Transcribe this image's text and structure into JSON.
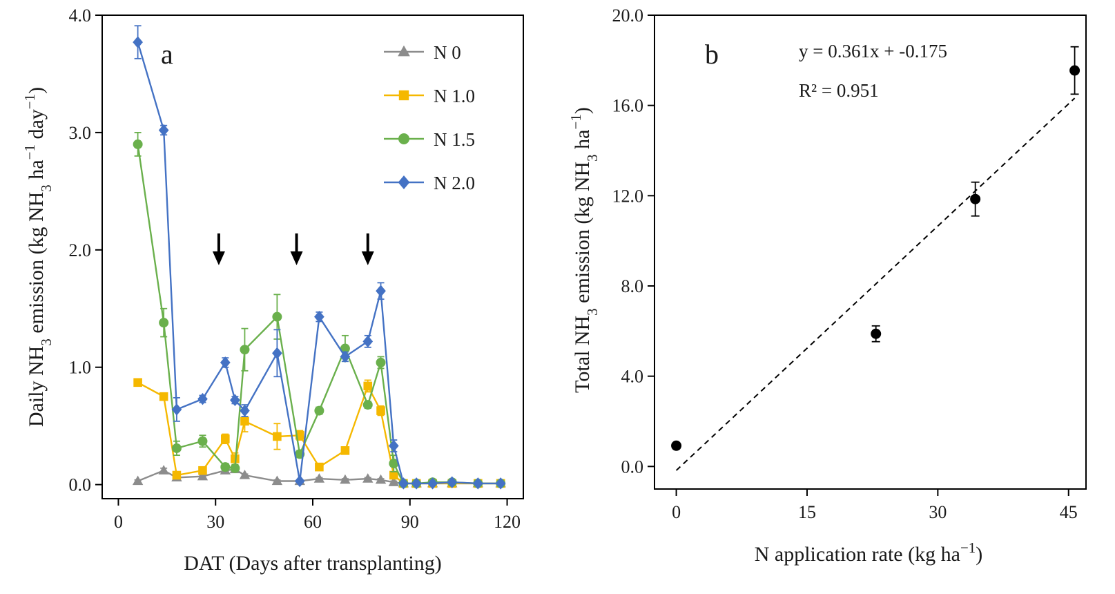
{
  "chart_data": [
    {
      "panel": "a",
      "type": "line",
      "xlabel": "DAT (Days after transplanting)",
      "ylabel_main": "Daily NH",
      "ylabel_sub": "3",
      "ylabel_rest": " emission (kg NH",
      "ylabel_sub2": "3",
      "ylabel_tail": " ha",
      "ylabel_sup": "−1",
      "ylabel_day": " day",
      "ylabel_sup2": "−1",
      "ylabel_close": ")",
      "xlim": [
        -5,
        125
      ],
      "ylim": [
        -0.12,
        4.0
      ],
      "xticks": [
        0,
        30,
        60,
        90,
        120
      ],
      "xtick_labels": [
        "0",
        "30",
        "60",
        "90",
        "120"
      ],
      "yticks": [
        0,
        1,
        2,
        3,
        4
      ],
      "ytick_labels": [
        "0.0",
        "1.0",
        "2.0",
        "3.0",
        "4.0"
      ],
      "arrows_x": [
        31,
        55,
        77
      ],
      "legend_position": "top-right",
      "series": [
        {
          "name": "N 0",
          "color": "#8c8c8c",
          "marker": "triangle",
          "x": [
            6,
            14,
            18,
            26,
            33,
            36,
            39,
            49,
            56,
            62,
            70,
            77,
            81,
            85,
            88,
            92,
            97,
            103,
            111,
            118
          ],
          "y": [
            0.03,
            0.12,
            0.06,
            0.07,
            0.12,
            0.13,
            0.08,
            0.03,
            0.03,
            0.05,
            0.04,
            0.05,
            0.04,
            0.02,
            0.01,
            0.01,
            0.01,
            0.01,
            0.01,
            0.01
          ],
          "err": [
            0.01,
            0.02,
            0.01,
            0.01,
            0.02,
            0.02,
            0.01,
            0.01,
            0.01,
            0.01,
            0.01,
            0.01,
            0.01,
            0.01,
            0,
            0,
            0,
            0,
            0,
            0
          ]
        },
        {
          "name": "N 1.0",
          "color": "#f5b800",
          "marker": "square",
          "x": [
            6,
            14,
            18,
            26,
            33,
            36,
            39,
            49,
            56,
            62,
            70,
            77,
            81,
            85,
            88,
            92,
            97,
            103,
            111,
            118
          ],
          "y": [
            0.87,
            0.75,
            0.08,
            0.12,
            0.39,
            0.22,
            0.54,
            0.41,
            0.42,
            0.15,
            0.29,
            0.84,
            0.63,
            0.08,
            0.01,
            0.01,
            0.01,
            0.01,
            0.01,
            0.01
          ],
          "err": [
            0.03,
            0.03,
            0.02,
            0.02,
            0.04,
            0.05,
            0.09,
            0.11,
            0.04,
            0.02,
            0.03,
            0.05,
            0.04,
            0.02,
            0,
            0,
            0,
            0,
            0,
            0
          ]
        },
        {
          "name": "N 1.5",
          "color": "#6ab04c",
          "marker": "circle",
          "x": [
            6,
            14,
            18,
            26,
            33,
            36,
            39,
            49,
            56,
            62,
            70,
            77,
            81,
            85,
            88,
            92,
            97,
            103,
            111,
            118
          ],
          "y": [
            2.9,
            1.38,
            0.31,
            0.37,
            0.15,
            0.14,
            1.15,
            1.43,
            0.26,
            0.63,
            1.16,
            0.68,
            1.04,
            0.18,
            0.01,
            0.01,
            0.02,
            0.02,
            0.01,
            0.01
          ],
          "err": [
            0.1,
            0.12,
            0.06,
            0.05,
            0.03,
            0.03,
            0.18,
            0.19,
            0.03,
            0.03,
            0.11,
            0.03,
            0.05,
            0.07,
            0,
            0,
            0,
            0,
            0,
            0
          ]
        },
        {
          "name": "N 2.0",
          "color": "#4472c4",
          "marker": "diamond",
          "x": [
            6,
            14,
            18,
            26,
            33,
            36,
            39,
            49,
            56,
            62,
            70,
            77,
            81,
            85,
            88,
            92,
            97,
            103,
            111,
            118
          ],
          "y": [
            3.77,
            3.02,
            0.64,
            0.73,
            1.04,
            0.72,
            0.63,
            1.12,
            0.03,
            1.43,
            1.09,
            1.22,
            1.65,
            0.33,
            0.01,
            0.01,
            0.01,
            0.02,
            0.01,
            0.01
          ],
          "err": [
            0.14,
            0.04,
            0.1,
            0.03,
            0.04,
            0.03,
            0.05,
            0.2,
            0.01,
            0.04,
            0.04,
            0.05,
            0.07,
            0.05,
            0,
            0,
            0,
            0,
            0,
            0
          ]
        }
      ]
    },
    {
      "panel": "b",
      "type": "scatter",
      "xlabel_main": "N application rate (kg ha",
      "xlabel_sup": "−1",
      "xlabel_close": ")",
      "ylabel_main": "Total NH",
      "ylabel_sub": "3",
      "ylabel_rest": " emission (kg NH",
      "ylabel_sub2": "3",
      "ylabel_tail": " ha",
      "ylabel_sup": "−1",
      "ylabel_close": ")",
      "xlim": [
        -2.5,
        47
      ],
      "ylim": [
        -1.0,
        20.0
      ],
      "xticks": [
        0,
        15,
        30,
        45
      ],
      "xtick_labels": [
        "0",
        "15",
        "30",
        "45"
      ],
      "yticks": [
        0,
        4,
        8,
        12,
        16,
        20
      ],
      "ytick_labels": [
        "0.0",
        "4.0",
        "8.0",
        "12.0",
        "16.0",
        "20.0"
      ],
      "points": {
        "x": [
          0,
          22.9,
          34.3,
          45.7
        ],
        "y": [
          0.92,
          5.88,
          11.85,
          17.55
        ],
        "err": [
          0.05,
          0.35,
          0.75,
          1.05
        ]
      },
      "fit": {
        "slope": 0.361,
        "intercept": -0.175,
        "x_range": [
          0,
          45.7
        ],
        "style": "dashed"
      },
      "equation": "y = 0.361x + -0.175",
      "r2_label": "R² = 0.951"
    }
  ]
}
